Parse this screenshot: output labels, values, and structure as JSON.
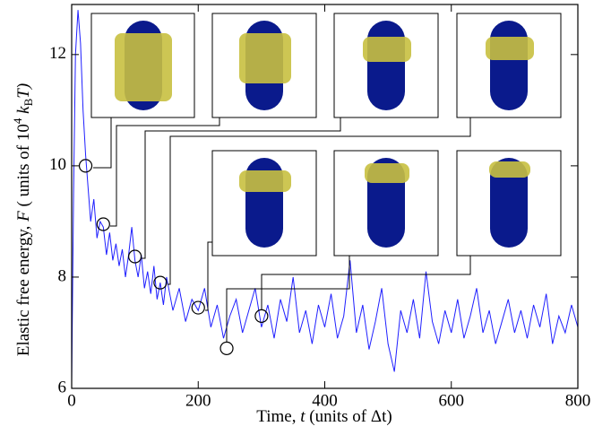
{
  "chart_data": {
    "type": "line",
    "xlabel": [
      "Time, ",
      "t",
      " (units of Δt)"
    ],
    "ylabel": [
      "Elastic free energy, ",
      "F",
      " ( units of 10",
      "4",
      " k",
      "B",
      "T)"
    ],
    "x": [
      0,
      3,
      6,
      10,
      14,
      18,
      22,
      26,
      30,
      35,
      40,
      45,
      50,
      55,
      60,
      65,
      70,
      75,
      80,
      85,
      90,
      95,
      100,
      105,
      110,
      115,
      120,
      125,
      130,
      135,
      140,
      145,
      150,
      160,
      170,
      180,
      190,
      200,
      210,
      220,
      230,
      240,
      250,
      260,
      270,
      280,
      290,
      300,
      310,
      320,
      330,
      340,
      350,
      360,
      370,
      380,
      390,
      400,
      410,
      420,
      430,
      440,
      450,
      460,
      470,
      480,
      490,
      500,
      510,
      520,
      530,
      540,
      550,
      560,
      570,
      580,
      590,
      600,
      610,
      620,
      630,
      640,
      650,
      660,
      670,
      680,
      690,
      700,
      710,
      720,
      730,
      740,
      750,
      760,
      770,
      780,
      790,
      800
    ],
    "series": [
      {
        "color": "#1f1fff",
        "values": [
          6.1,
          9.5,
          12.0,
          12.8,
          12.2,
          11.0,
          10.2,
          9.6,
          9.0,
          9.4,
          8.7,
          9.0,
          8.9,
          8.4,
          8.8,
          8.3,
          8.6,
          8.2,
          8.5,
          8.0,
          8.4,
          8.9,
          8.3,
          8.0,
          8.4,
          7.8,
          8.1,
          7.7,
          8.2,
          7.6,
          7.9,
          7.5,
          8.0,
          7.4,
          7.8,
          7.2,
          7.6,
          7.4,
          7.8,
          7.1,
          7.5,
          6.9,
          7.3,
          7.6,
          7.0,
          7.4,
          7.8,
          7.1,
          7.5,
          6.9,
          7.6,
          7.2,
          8.0,
          7.0,
          7.4,
          6.8,
          7.5,
          7.1,
          7.7,
          6.9,
          7.3,
          8.3,
          7.0,
          7.5,
          6.7,
          7.2,
          7.8,
          6.8,
          6.3,
          7.4,
          7.0,
          7.6,
          6.9,
          8.1,
          7.2,
          6.8,
          7.4,
          7.0,
          7.6,
          6.9,
          7.3,
          7.8,
          7.0,
          7.4,
          6.8,
          7.2,
          7.6,
          7.0,
          7.4,
          6.9,
          7.5,
          7.1,
          7.7,
          6.8,
          7.3,
          7.0,
          7.5,
          7.1
        ]
      }
    ],
    "markers": {
      "x": [
        22,
        50,
        100,
        140,
        200,
        245,
        300
      ],
      "y": [
        10.0,
        8.95,
        8.37,
        7.9,
        7.45,
        6.72,
        7.3
      ]
    },
    "xlim": [
      0,
      800
    ],
    "ylim": [
      6,
      12.9
    ],
    "xticks": [
      0,
      200,
      400,
      600,
      800
    ],
    "yticks": [
      6,
      8,
      10,
      12
    ]
  }
}
